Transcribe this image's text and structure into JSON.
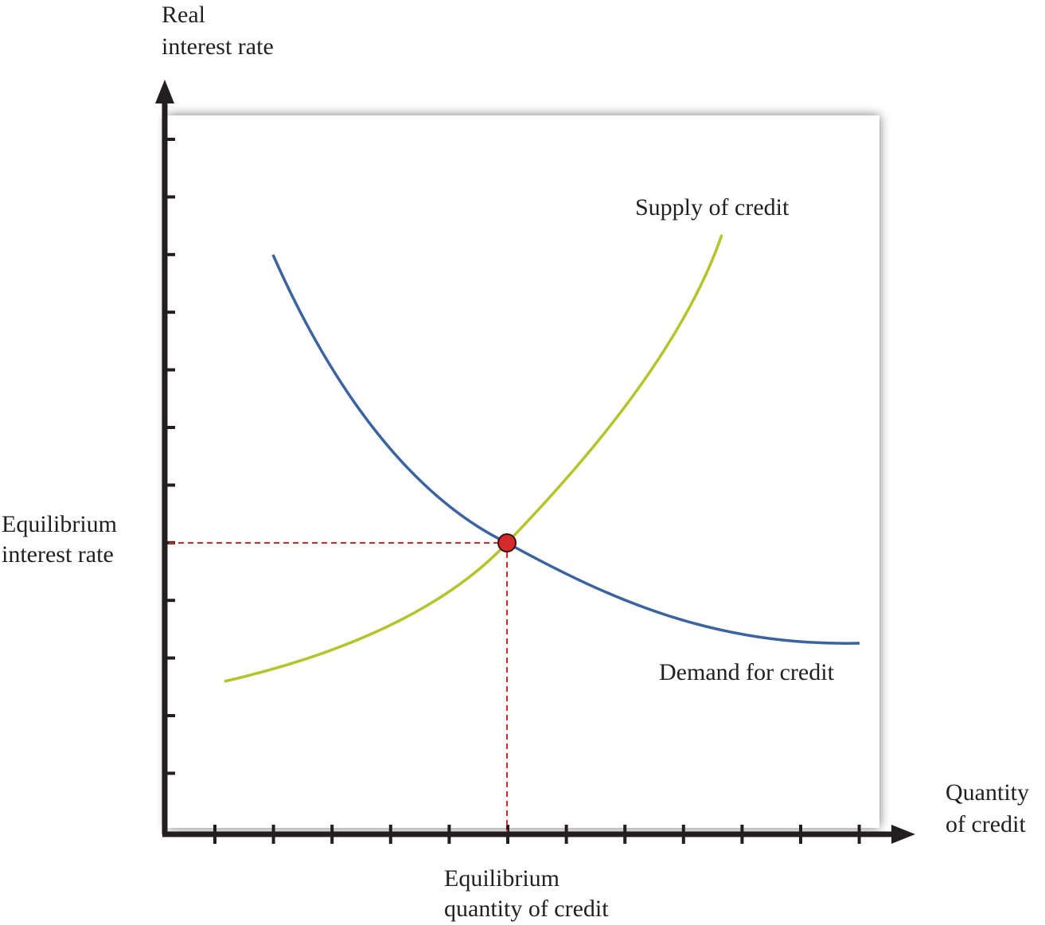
{
  "y_axis_label": [
    "Real",
    "interest rate"
  ],
  "x_axis_label": [
    "Quantity",
    "of credit"
  ],
  "supply_label": "Supply of credit",
  "demand_label": "Demand for credit",
  "equilibrium_rate_label": [
    "Equilibrium",
    "interest rate"
  ],
  "equilibrium_quantity_label": [
    "Equilibrium",
    "quantity of credit"
  ]
}
